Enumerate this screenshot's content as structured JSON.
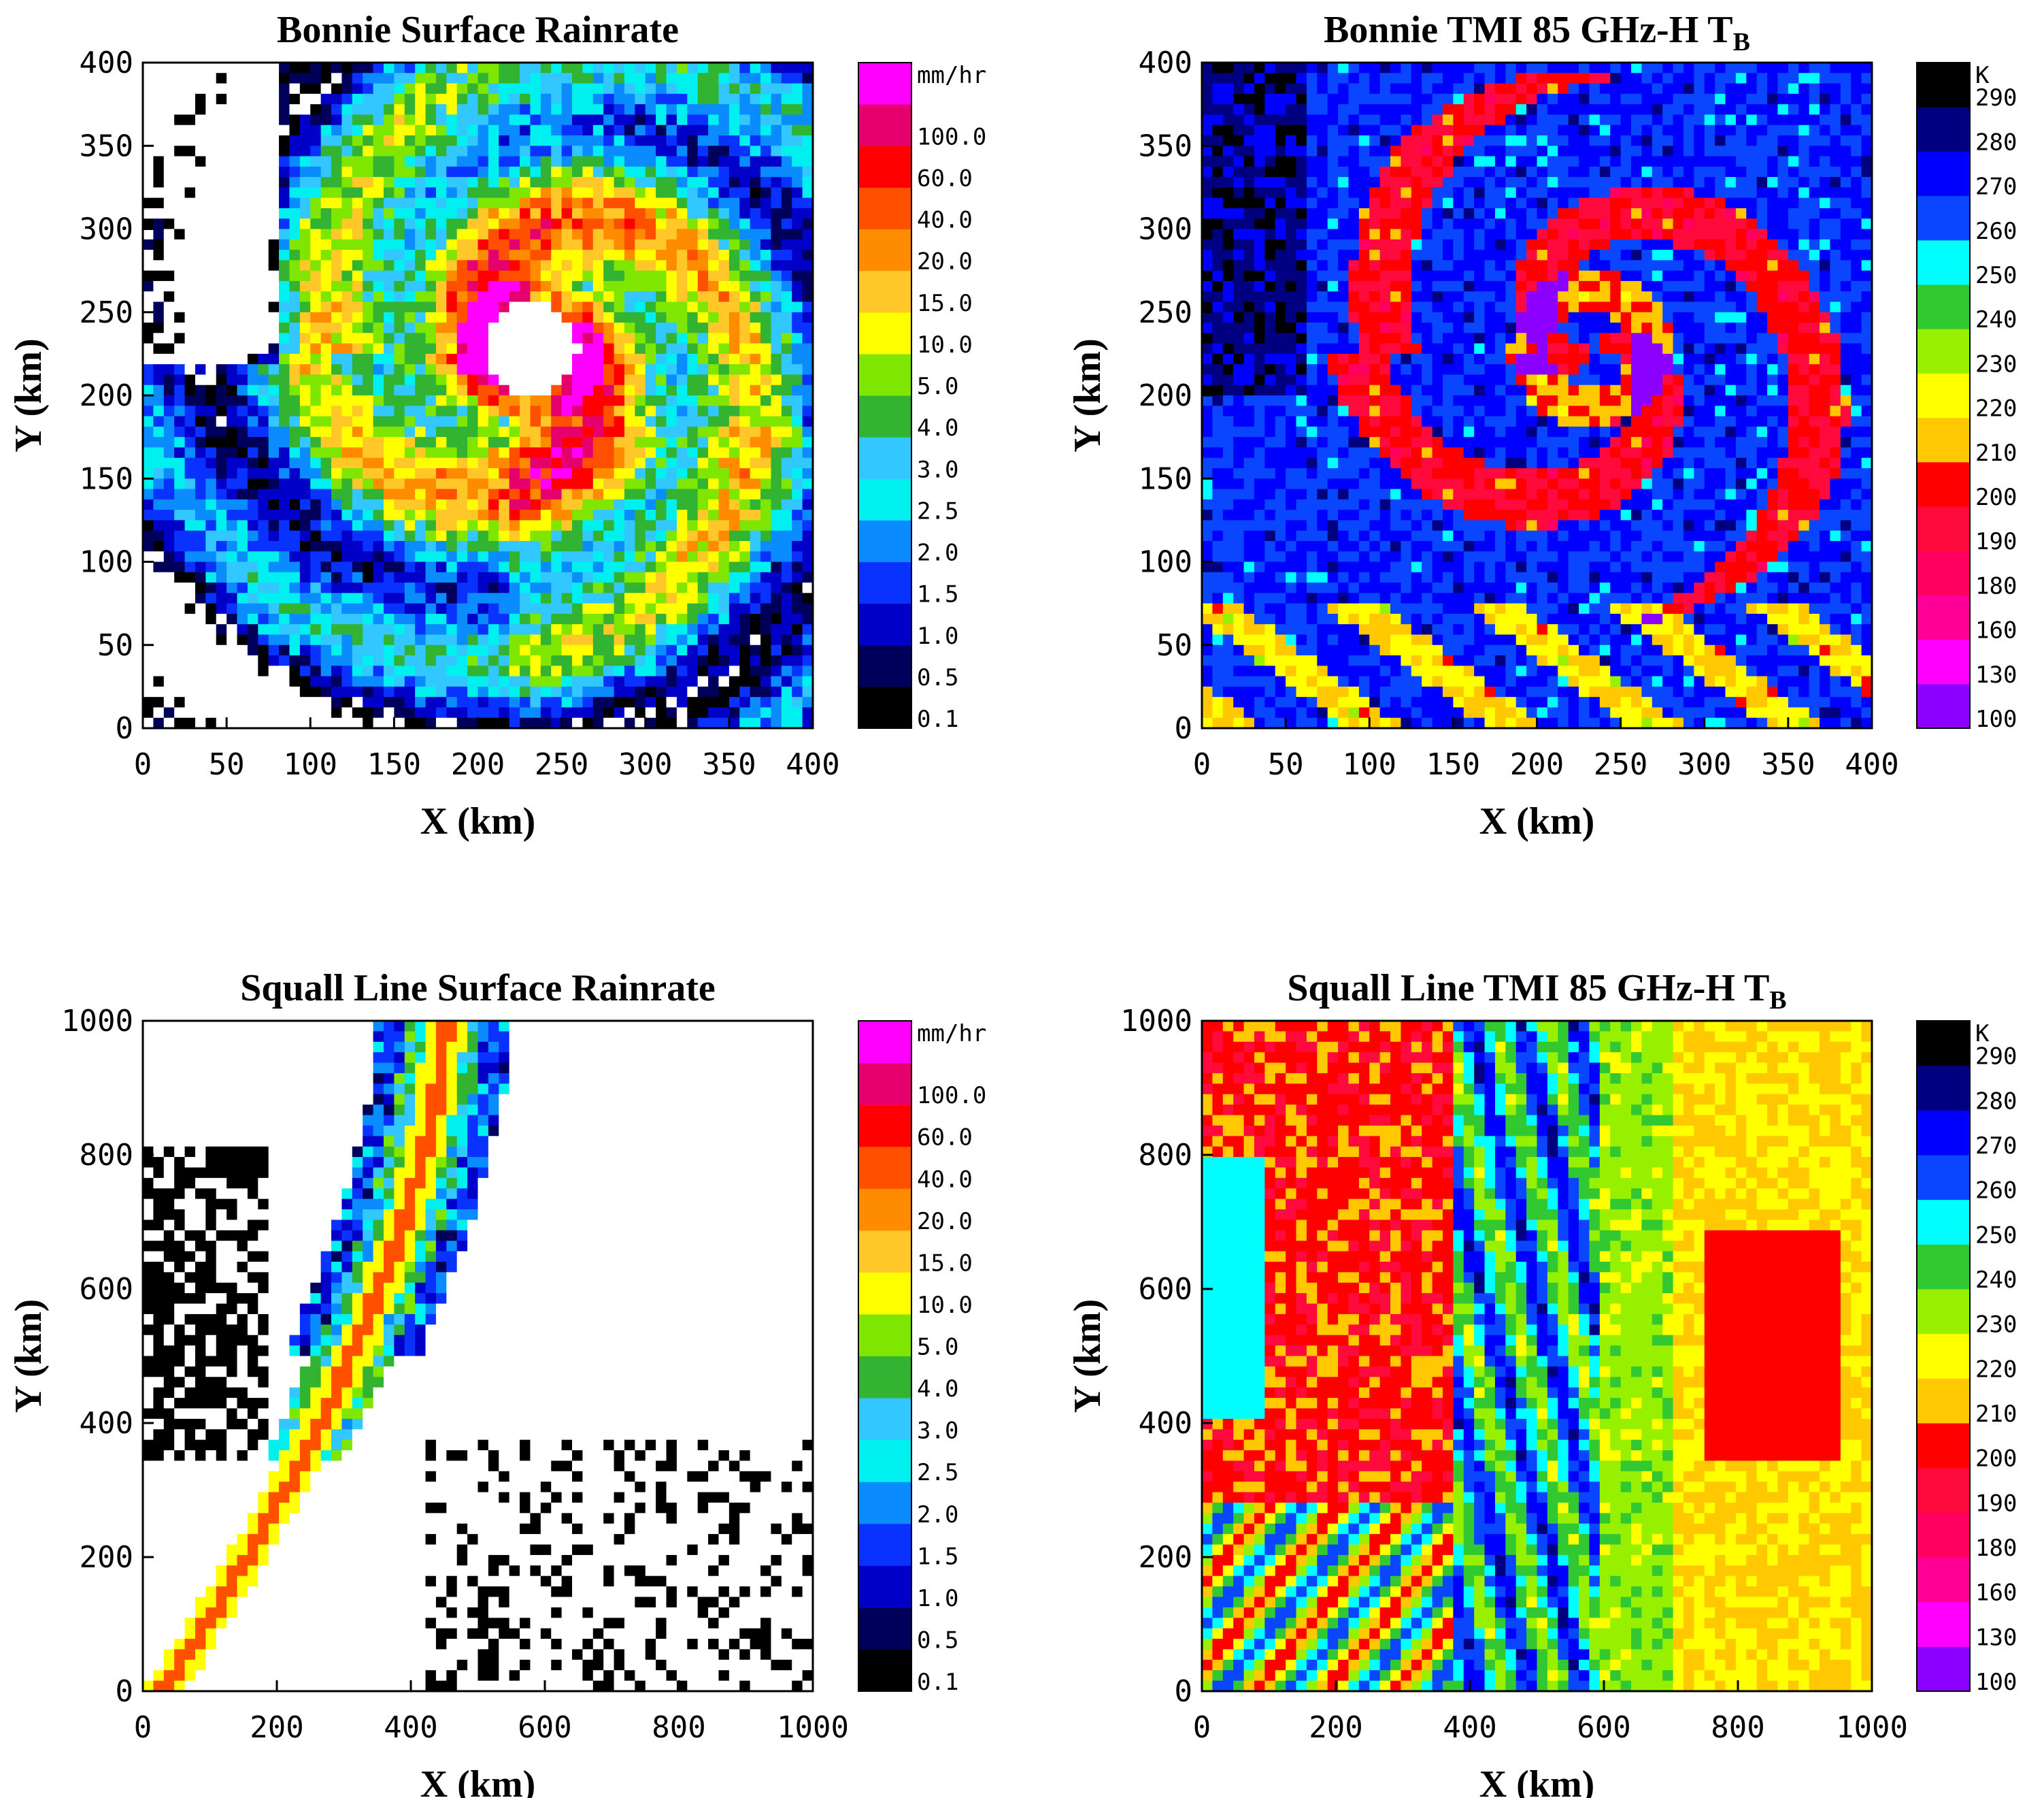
{
  "palettes": {
    "rain": [
      "#000000",
      "#00005a",
      "#0000c8",
      "#0a32ff",
      "#0a8cff",
      "#00f0f0",
      "#32c8ff",
      "#32b432",
      "#7ee600",
      "#ffff00",
      "#ffc828",
      "#ff8c00",
      "#ff5000",
      "#ff0000",
      "#e6006e",
      "#ff00ff"
    ],
    "tb": [
      "#8c00ff",
      "#ff00ff",
      "#ff0096",
      "#ff0060",
      "#ff0a3c",
      "#ff0000",
      "#ffc800",
      "#ffff00",
      "#96f000",
      "#32c832",
      "#00ffff",
      "#0a46ff",
      "#0000ff",
      "#000080",
      "#000000"
    ]
  },
  "panels": [
    {
      "title": "Bonnie Surface Rainrate",
      "xlabel": "X (km)",
      "ylabel": "Y (km)",
      "unit": "mm/hr",
      "palette": "rain",
      "scene": "hurricane",
      "x_ticks": [
        "0",
        "50",
        "100",
        "150",
        "200",
        "250",
        "300",
        "350",
        "400"
      ],
      "y_ticks": [
        "0",
        "50",
        "100",
        "150",
        "200",
        "250",
        "300",
        "350",
        "400"
      ],
      "colorbar_labels": [
        "0.1",
        "0.5",
        "1.0",
        "1.5",
        "2.0",
        "2.5",
        "3.0",
        "4.0",
        "5.0",
        "10.0",
        "15.0",
        "20.0",
        "40.0",
        "60.0",
        "100.0"
      ],
      "chart_data": {
        "type": "heatmap",
        "title": "Bonnie Surface Rainrate",
        "xlabel": "X (km)",
        "ylabel": "Y (km)",
        "xlim": [
          0,
          400
        ],
        "ylim": [
          0,
          400
        ],
        "colorbar": {
          "unit": "mm/hr",
          "levels": [
            0.1,
            0.5,
            1.0,
            1.5,
            2.0,
            2.5,
            3.0,
            4.0,
            5.0,
            10.0,
            15.0,
            20.0,
            40.0,
            60.0,
            100.0
          ]
        }
      }
    },
    {
      "title": "Bonnie TMI 85 GHz-H T",
      "title_sub": "B",
      "xlabel": "X (km)",
      "ylabel": "Y (km)",
      "unit": "K",
      "palette": "tb",
      "scene": "hurricane",
      "x_ticks": [
        "0",
        "50",
        "100",
        "150",
        "200",
        "250",
        "300",
        "350",
        "400"
      ],
      "y_ticks": [
        "0",
        "50",
        "100",
        "150",
        "200",
        "250",
        "300",
        "350",
        "400"
      ],
      "colorbar_labels": [
        "100",
        "130",
        "160",
        "180",
        "190",
        "200",
        "210",
        "220",
        "230",
        "240",
        "250",
        "260",
        "270",
        "280",
        "290"
      ],
      "chart_data": {
        "type": "heatmap",
        "title": "Bonnie TMI 85 GHz-H TB",
        "xlabel": "X (km)",
        "ylabel": "Y (km)",
        "xlim": [
          0,
          400
        ],
        "ylim": [
          0,
          400
        ],
        "colorbar": {
          "unit": "K",
          "levels": [
            100,
            130,
            160,
            180,
            190,
            200,
            210,
            220,
            230,
            240,
            250,
            260,
            270,
            280,
            290
          ]
        }
      }
    },
    {
      "title": "Squall Line Surface Rainrate",
      "xlabel": "X (km)",
      "ylabel": "Y (km)",
      "unit": "mm/hr",
      "palette": "rain",
      "scene": "squall",
      "x_ticks": [
        "0",
        "200",
        "400",
        "600",
        "800",
        "1000"
      ],
      "y_ticks": [
        "0",
        "200",
        "400",
        "600",
        "800",
        "1000"
      ],
      "colorbar_labels": [
        "0.1",
        "0.5",
        "1.0",
        "1.5",
        "2.0",
        "2.5",
        "3.0",
        "4.0",
        "5.0",
        "10.0",
        "15.0",
        "20.0",
        "40.0",
        "60.0",
        "100.0"
      ],
      "chart_data": {
        "type": "heatmap",
        "title": "Squall Line Surface Rainrate",
        "xlabel": "X (km)",
        "ylabel": "Y (km)",
        "xlim": [
          0,
          1000
        ],
        "ylim": [
          0,
          1000
        ],
        "colorbar": {
          "unit": "mm/hr",
          "levels": [
            0.1,
            0.5,
            1.0,
            1.5,
            2.0,
            2.5,
            3.0,
            4.0,
            5.0,
            10.0,
            15.0,
            20.0,
            40.0,
            60.0,
            100.0
          ]
        }
      }
    },
    {
      "title": "Squall Line TMI 85 GHz-H T",
      "title_sub": "B",
      "xlabel": "X (km)",
      "ylabel": "Y (km)",
      "unit": "K",
      "palette": "tb",
      "scene": "squall",
      "x_ticks": [
        "0",
        "200",
        "400",
        "600",
        "800",
        "1000"
      ],
      "y_ticks": [
        "0",
        "200",
        "400",
        "600",
        "800",
        "1000"
      ],
      "colorbar_labels": [
        "100",
        "130",
        "160",
        "180",
        "190",
        "200",
        "210",
        "220",
        "230",
        "240",
        "250",
        "260",
        "270",
        "280",
        "290"
      ],
      "chart_data": {
        "type": "heatmap",
        "title": "Squall Line TMI 85 GHz-H TB",
        "xlabel": "X (km)",
        "ylabel": "Y (km)",
        "xlim": [
          0,
          1000
        ],
        "ylim": [
          0,
          1000
        ],
        "colorbar": {
          "unit": "K",
          "levels": [
            100,
            130,
            160,
            180,
            190,
            200,
            210,
            220,
            230,
            240,
            250,
            260,
            270,
            280,
            290
          ]
        }
      }
    }
  ]
}
